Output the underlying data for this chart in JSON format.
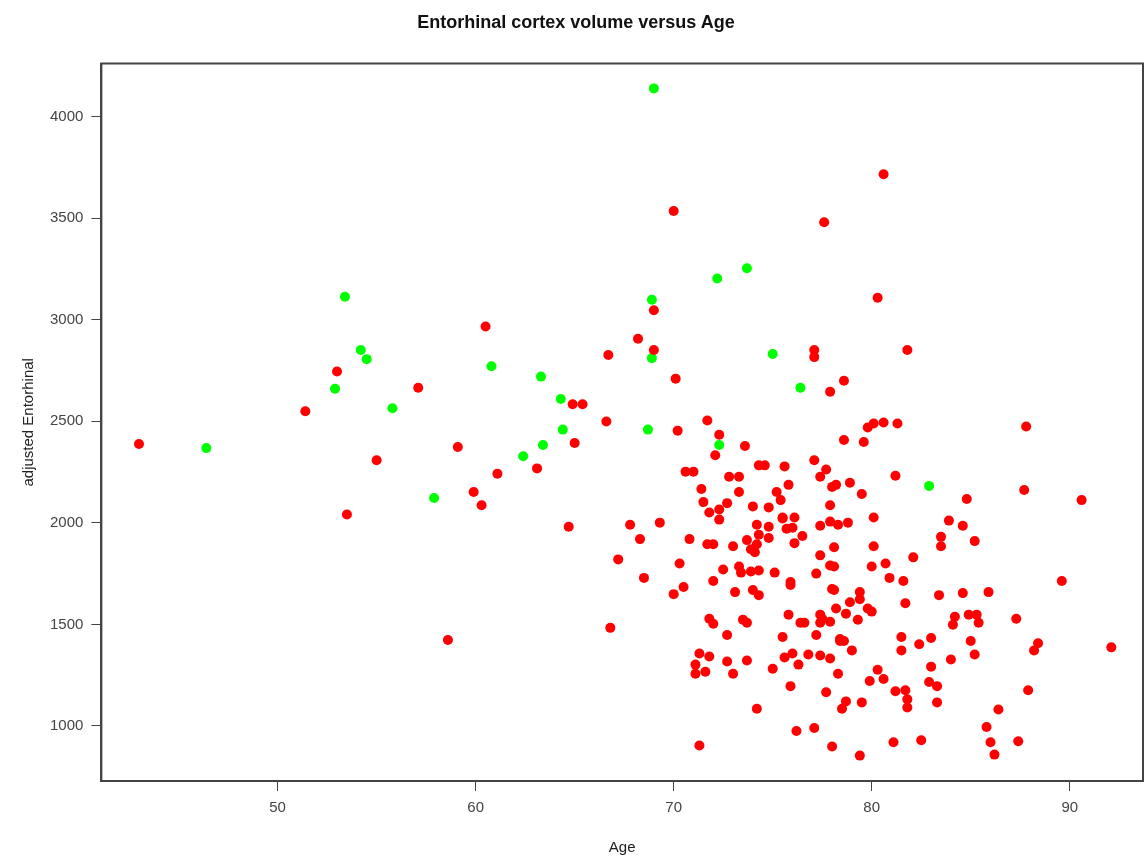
{
  "chart_data": {
    "type": "scatter",
    "title": "Entorhinal cortex volume versus Age",
    "xlabel": "Age",
    "ylabel": "adjusted Entorhinal",
    "xlim": [
      41.1,
      93.7
    ],
    "ylim": [
      729,
      4261
    ],
    "xticks": [
      50,
      60,
      70,
      80,
      90
    ],
    "yticks": [
      1000,
      1500,
      2000,
      2500,
      3000,
      3500,
      4000
    ],
    "marker": "circle",
    "legend": false,
    "grid": false,
    "series": [
      {
        "color": "#ff0000",
        "x": [
          43.0,
          51.4,
          53.0,
          53.5,
          55.0,
          57.1,
          58.6,
          59.1,
          59.9,
          60.3,
          60.5,
          61.1,
          63.1,
          64.7,
          64.9,
          65.4,
          65.0,
          80.6,
          70.0,
          77.6,
          69.0,
          80.3,
          68.2,
          66.7,
          69.0,
          77.1,
          77.1,
          81.8,
          70.1,
          77.9,
          78.6,
          66.6,
          70.2,
          71.7,
          72.3,
          73.6,
          72.1,
          78.6,
          79.6,
          79.8,
          80.1,
          80.6,
          81.3,
          87.8,
          81.2,
          87.7,
          90.6,
          84.8,
          83.9,
          84.6,
          83.5,
          83.5,
          85.2,
          82.1,
          80.7,
          80.9,
          81.6,
          89.6,
          83.4,
          84.6,
          85.9,
          81.7,
          84.2,
          84.1,
          84.9,
          85.3,
          85.4,
          87.3,
          81.5,
          81.5,
          83.0,
          82.4,
          85.0,
          85.2,
          84.0,
          88.4,
          88.2,
          92.1,
          83.0,
          80.3,
          80.6,
          82.9,
          83.3,
          81.2,
          81.7,
          81.8,
          81.8,
          83.3,
          87.9,
          86.4,
          81.1,
          82.5,
          85.8,
          86.0,
          86.2,
          87.4,
          70.6,
          71.0,
          72.8,
          73.3,
          74.3,
          74.6,
          75.6,
          71.4,
          73.3,
          71.5,
          72.7,
          72.3,
          72.3,
          71.8,
          74.0,
          74.8,
          75.2,
          75.4,
          67.8,
          69.3,
          68.3,
          70.8,
          71.7,
          72.0,
          73.0,
          74.2,
          74.3,
          74.8,
          74.8,
          75.5,
          73.7,
          73.9,
          74.1,
          74.2,
          67.2,
          70.3,
          72.5,
          73.3,
          73.4,
          73.9,
          74.3,
          75.1,
          68.5,
          72.0,
          70.5,
          70.0,
          73.1,
          74.0,
          74.3,
          66.8,
          71.8,
          72.0,
          73.5,
          73.7,
          72.7,
          75.5,
          71.3,
          71.8,
          72.7,
          73.7,
          71.1,
          71.1,
          71.6,
          73.0,
          75.0,
          75.6,
          74.2,
          71.3,
          77.1,
          77.7,
          77.4,
          78.0,
          78.2,
          78.9,
          75.8,
          79.5,
          77.9,
          80.1,
          75.5,
          76.1,
          75.7,
          76.0,
          76.5,
          76.1,
          77.4,
          77.9,
          78.3,
          78.8,
          78.1,
          77.4,
          80.1,
          77.9,
          78.1,
          77.2,
          80.0,
          75.9,
          75.9,
          78.0,
          78.1,
          79.4,
          79.4,
          78.9,
          78.2,
          78.7,
          79.8,
          80.0,
          79.3,
          75.8,
          76.4,
          76.6,
          77.4,
          77.5,
          77.4,
          77.9,
          77.2,
          78.4,
          78.4,
          78.6,
          79.0,
          76.0,
          76.3,
          76.8,
          77.4,
          77.9,
          78.3,
          79.9,
          75.9,
          77.7,
          78.7,
          78.5,
          79.5,
          76.2,
          77.1,
          78.0,
          79.4
        ],
        "values": [
          2388,
          2549,
          2745,
          2041,
          2308,
          2665,
          1423,
          2373,
          2152,
          2087,
          2967,
          2242,
          2268,
          1981,
          2584,
          2584,
          2393,
          3716,
          3535,
          3480,
          3047,
          3108,
          2906,
          2826,
          2851,
          2851,
          2816,
          2851,
          2710,
          2645,
          2700,
          2499,
          2454,
          2504,
          2434,
          2378,
          2333,
          2408,
          2398,
          2469,
          2489,
          2494,
          2489,
          2474,
          2232,
          2162,
          2112,
          2117,
          2011,
          1986,
          1931,
          1885,
          1910,
          1830,
          1800,
          1729,
          1714,
          1714,
          1644,
          1654,
          1659,
          1604,
          1538,
          1498,
          1548,
          1548,
          1508,
          1528,
          1438,
          1372,
          1433,
          1402,
          1418,
          1352,
          1327,
          1407,
          1372,
          1387,
          1292,
          1277,
          1231,
          1216,
          1196,
          1171,
          1176,
          1131,
          1091,
          1116,
          1176,
          1081,
          920,
          930,
          995,
          920,
          859,
          925,
          2252,
          2252,
          2227,
          2227,
          2283,
          2283,
          2278,
          2167,
          2152,
          2102,
          2097,
          2066,
          2016,
          2051,
          2081,
          2076,
          2152,
          2112,
          1991,
          2001,
          1920,
          1920,
          1895,
          1895,
          1885,
          1991,
          1941,
          1981,
          1925,
          2021,
          1915,
          1870,
          1855,
          1895,
          1820,
          1800,
          1770,
          1785,
          1755,
          1760,
          1765,
          1755,
          1729,
          1714,
          1684,
          1649,
          1659,
          1669,
          1644,
          1483,
          1528,
          1503,
          1523,
          1508,
          1448,
          1438,
          1357,
          1342,
          1317,
          1322,
          1302,
          1257,
          1267,
          1257,
          1282,
          1337,
          1085,
          904,
          2308,
          2263,
          2227,
          2177,
          2187,
          2197,
          2187,
          2142,
          2087,
          2026,
          2026,
          2026,
          1971,
          1976,
          1935,
          1900,
          1986,
          2006,
          1991,
          2001,
          1880,
          1840,
          1885,
          1790,
          1785,
          1750,
          1785,
          1709,
          1694,
          1674,
          1669,
          1659,
          1624,
          1609,
          1578,
          1553,
          1578,
          1563,
          1523,
          1548,
          1508,
          1508,
          1548,
          1528,
          1508,
          1513,
          1448,
          1428,
          1418,
          1418,
          1372,
          1357,
          1302,
          1352,
          1347,
          1332,
          1257,
          1221,
          1196,
          1166,
          1121,
          1085,
          1116,
          975,
          990,
          899,
          854
        ]
      },
      {
        "color": "#00ff00",
        "x": [
          46.4,
          52.9,
          53.4,
          54.2,
          54.5,
          55.8,
          57.9,
          60.8,
          62.4,
          63.3,
          63.4,
          64.3,
          64.4,
          68.7,
          69.0,
          68.9,
          68.9,
          72.2,
          72.3,
          73.7,
          75.0,
          76.4,
          82.9
        ],
        "values": [
          2368,
          2660,
          3113,
          2851,
          2806,
          2564,
          2122,
          2771,
          2328,
          2720,
          2383,
          2610,
          2459,
          2459,
          4139,
          3098,
          2811,
          3203,
          2383,
          3253,
          2831,
          2665,
          2182
        ]
      }
    ]
  }
}
